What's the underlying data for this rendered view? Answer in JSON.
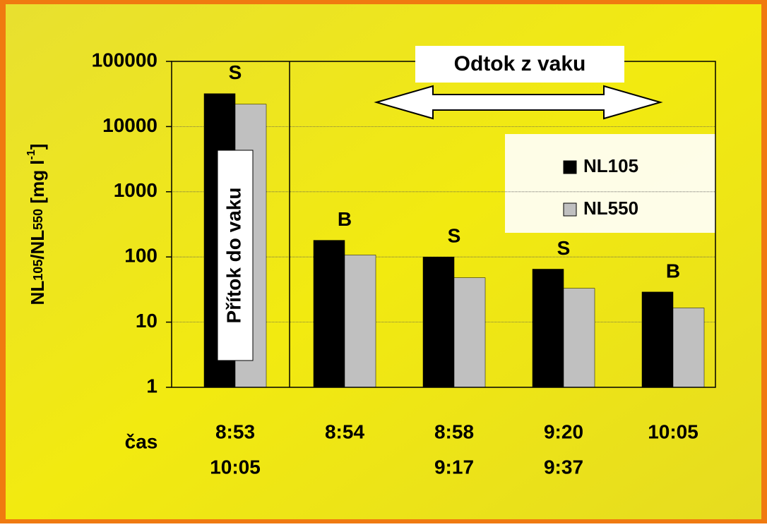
{
  "chart_data": {
    "type": "bar",
    "y_label": [
      "NL",
      "105",
      "/NL",
      "550",
      " [mg l",
      "-1",
      "]"
    ],
    "x_label": "čas",
    "categories": [
      [
        "8:53",
        "10:05"
      ],
      [
        "8:54"
      ],
      [
        "8:58",
        "9:17"
      ],
      [
        "9:20",
        "9:37"
      ],
      [
        "10:05"
      ]
    ],
    "bar_labels": [
      "S",
      "B",
      "S",
      "S",
      "B"
    ],
    "series": [
      {
        "name": "NL105",
        "color": "#000000",
        "values": [
          32000,
          180,
          100,
          65,
          29
        ]
      },
      {
        "name": "NL550",
        "color": "#c0c0c0",
        "values": [
          22000,
          107,
          48,
          33,
          16.5
        ]
      }
    ],
    "annotations": [
      "Odtok z vaku",
      "Přítok do vaku"
    ],
    "log_scale": true,
    "ylim": [
      1,
      100000
    ],
    "yticks": [
      1,
      10,
      100,
      1000,
      10000,
      100000
    ],
    "grid": true,
    "legend": "right"
  }
}
